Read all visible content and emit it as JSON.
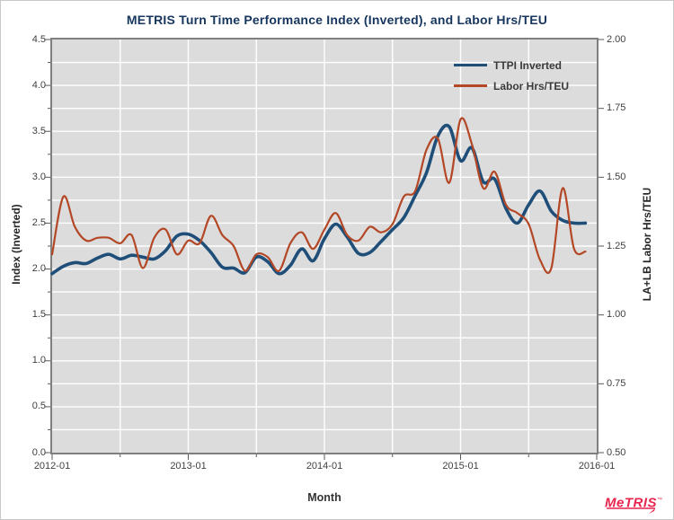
{
  "title": "METRIS Turn Time Performance Index (Inverted), and Labor Hrs/TEU",
  "logo": {
    "text": "MeTRIS",
    "tm": "™"
  },
  "colors": {
    "title": "#17365D",
    "plot_background": "#DCDCDC",
    "plot_frame": "#7F7F7F",
    "gridline": "#FFFFFF",
    "tick": "#595959",
    "ttpi_line": "#1F4E79",
    "labor_line": "#B34726",
    "logo_red": "#E8244E"
  },
  "chart_data": {
    "type": "line",
    "title": "METRIS Turn Time Performance Index (Inverted), and Labor Hrs/TEU",
    "xlabel": "Month",
    "ylabel_left": "Index (Inverted)",
    "ylabel_right": "LA+LB Labor Hrs/TEU",
    "y_left": {
      "min": 0.0,
      "max": 4.5,
      "tick_step": 0.5,
      "tick_labels": [
        "0.0",
        "0.5",
        "1.0",
        "1.5",
        "2.0",
        "2.5",
        "3.0",
        "3.5",
        "4.0",
        "4.5"
      ]
    },
    "y_right": {
      "min": 0.5,
      "max": 2.0,
      "tick_step": 0.25,
      "tick_labels": [
        "0.50",
        "0.75",
        "1.00",
        "1.25",
        "1.50",
        "1.75",
        "2.00"
      ]
    },
    "x_axis": {
      "start": "2012-01",
      "end": "2016-01",
      "major_tick_labels": [
        "2012-01",
        "2013-01",
        "2014-01",
        "2015-01",
        "2016-01"
      ],
      "minor_gridlines_every_months": 6
    },
    "grid": true,
    "legend_position": "top-right-inside",
    "months": [
      "2012-01",
      "2012-02",
      "2012-03",
      "2012-04",
      "2012-05",
      "2012-06",
      "2012-07",
      "2012-08",
      "2012-09",
      "2012-10",
      "2012-11",
      "2012-12",
      "2013-01",
      "2013-02",
      "2013-03",
      "2013-04",
      "2013-05",
      "2013-06",
      "2013-07",
      "2013-08",
      "2013-09",
      "2013-10",
      "2013-11",
      "2013-12",
      "2014-01",
      "2014-02",
      "2014-03",
      "2014-04",
      "2014-05",
      "2014-06",
      "2014-07",
      "2014-08",
      "2014-09",
      "2014-10",
      "2014-11",
      "2014-12",
      "2015-01",
      "2015-02",
      "2015-03",
      "2015-04",
      "2015-05",
      "2015-06",
      "2015-07",
      "2015-08",
      "2015-09",
      "2015-10",
      "2015-11",
      "2015-12"
    ],
    "series": [
      {
        "name": "TTPI Inverted",
        "axis": "left",
        "color": "#1F4E79",
        "stroke_width": 3.6,
        "values": [
          1.95,
          2.03,
          2.07,
          2.06,
          2.12,
          2.16,
          2.11,
          2.15,
          2.13,
          2.11,
          2.2,
          2.36,
          2.38,
          2.31,
          2.18,
          2.02,
          2.01,
          1.96,
          2.13,
          2.08,
          1.95,
          2.04,
          2.22,
          2.09,
          2.33,
          2.49,
          2.35,
          2.17,
          2.18,
          2.3,
          2.43,
          2.56,
          2.8,
          3.05,
          3.45,
          3.55,
          3.18,
          3.32,
          2.95,
          2.98,
          2.66,
          2.5,
          2.7,
          2.85,
          2.63,
          2.53,
          2.5,
          2.5
        ]
      },
      {
        "name": "Labor Hrs/TEU",
        "axis": "right",
        "color": "#B34726",
        "stroke_width": 2.2,
        "values": [
          1.22,
          1.43,
          1.32,
          1.27,
          1.28,
          1.28,
          1.26,
          1.29,
          1.17,
          1.28,
          1.31,
          1.22,
          1.27,
          1.26,
          1.36,
          1.29,
          1.25,
          1.16,
          1.22,
          1.21,
          1.16,
          1.26,
          1.3,
          1.24,
          1.31,
          1.37,
          1.29,
          1.27,
          1.32,
          1.3,
          1.33,
          1.43,
          1.45,
          1.6,
          1.64,
          1.48,
          1.71,
          1.62,
          1.46,
          1.52,
          1.4,
          1.37,
          1.33,
          1.2,
          1.17,
          1.46,
          1.24,
          1.23
        ]
      }
    ]
  }
}
